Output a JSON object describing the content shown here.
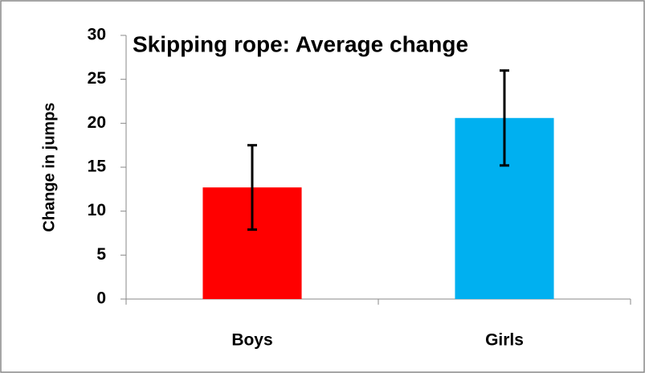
{
  "chart_data": {
    "type": "bar",
    "title": "Skipping rope: Average change",
    "y_label": "Change in jumps",
    "categories": [
      "Boys",
      "Girls"
    ],
    "values": [
      12.7,
      20.6
    ],
    "errors": [
      4.8,
      5.4
    ],
    "colors": [
      "#ff0000",
      "#00b0f0"
    ],
    "ylim": [
      0,
      30
    ],
    "yticks": [
      0,
      5,
      10,
      15,
      20,
      25,
      30
    ],
    "grid": false
  }
}
